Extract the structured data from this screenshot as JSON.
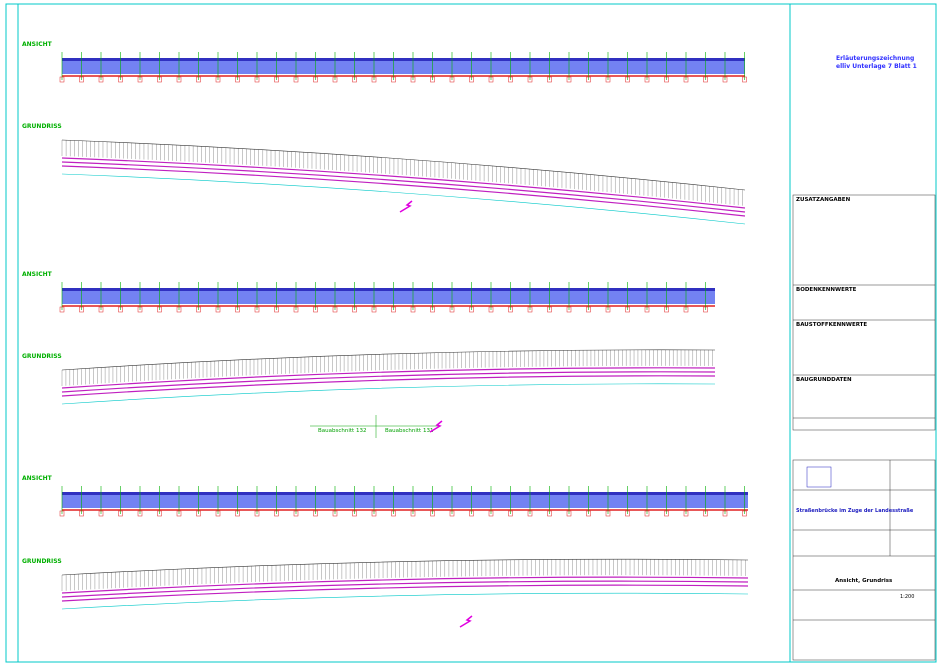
{
  "header": {
    "title": "Erläuterungszeichnung",
    "subtitle": "elliv Unterlage 7 Blatt 1"
  },
  "views": [
    {
      "elevation_label": "ANSICHT",
      "plan_label": "GRUNDRISS"
    },
    {
      "elevation_label": "ANSICHT",
      "plan_label": "GRUNDRISS"
    },
    {
      "elevation_label": "ANSICHT",
      "plan_label": "GRUNDRISS"
    }
  ],
  "sections": [
    "Bauabschnitt 132",
    "Bauabschnitt 131"
  ],
  "panels": {
    "notes_title": "ZUSATZANGABEN",
    "soil_title": "BODENKENNWERTE",
    "material_title": "BAUSTOFFKENNWERTE",
    "ground_title": "BAUGRUNDDATEN"
  },
  "title_block": {
    "project": "Straßenbrücke im Zuge der Landesstraße",
    "content": "Ansicht, Grundriss",
    "scale": "1:200"
  }
}
